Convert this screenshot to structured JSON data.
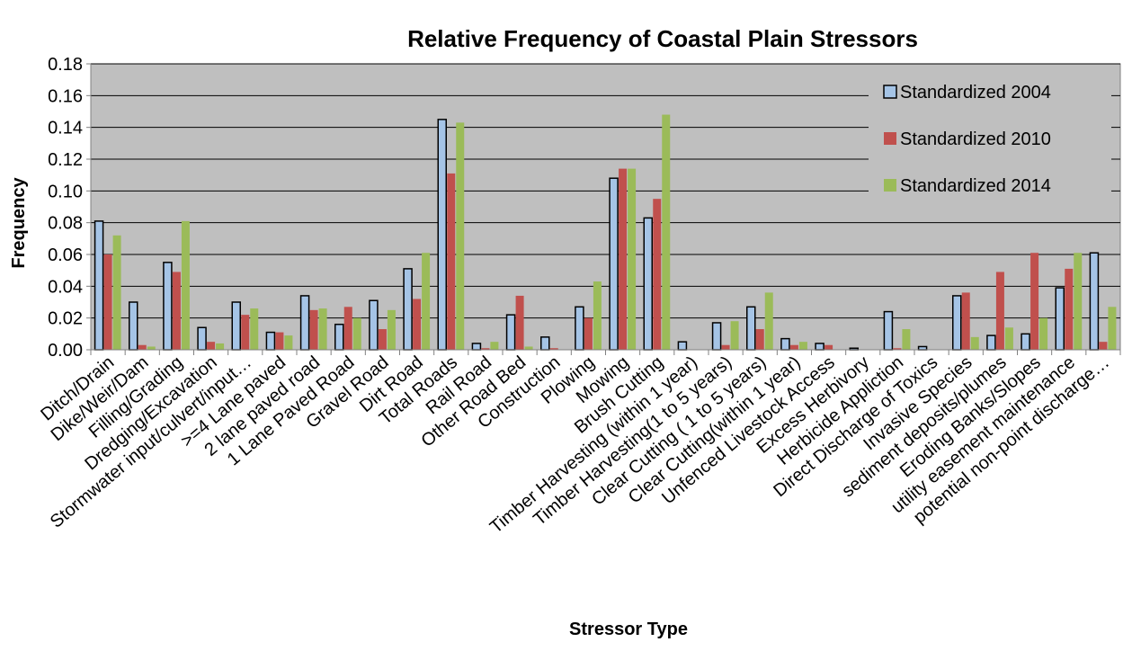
{
  "chart_data": {
    "type": "bar",
    "title": "Relative Frequency of Coastal Plain Stressors",
    "xlabel": "Stressor Type",
    "ylabel": "Frequency",
    "ylim": [
      0,
      0.18
    ],
    "yticks": [
      "0.00",
      "0.02",
      "0.04",
      "0.06",
      "0.08",
      "0.10",
      "0.12",
      "0.14",
      "0.16",
      "0.18"
    ],
    "ytick_values": [
      0,
      0.02,
      0.04,
      0.06,
      0.08,
      0.1,
      0.12,
      0.14,
      0.16,
      0.18
    ],
    "grid": true,
    "legend_position": "top-right inside",
    "categories": [
      "Ditch/Drain",
      "Dike/Weir/Dam",
      "Filling/Grading",
      "Dredging/Excavation",
      "Stormwater input/culvert/input…",
      ">=4 Lane paved",
      "2 lane paved road",
      "1 Lane Paved Road",
      "Gravel Road",
      "Dirt Road",
      "Total Roads",
      "Rail Road",
      "Other Road Bed",
      "Construction",
      "Plowing",
      "Mowing",
      "Brush Cutting",
      "Timber Harvesting (within 1 year)",
      "Timber Harvesting(1 to 5 years)",
      "Clear Cutting ( 1 to 5 years)",
      "Clear Cutting(within 1 year)",
      "Unfenced Livestock Access",
      "Excess Herbivory",
      "Herbicide Appliction",
      "Direct Discharge of Toxics",
      "Invasive Species",
      "sediment deposits/plumes",
      "Eroding Banks/Slopes",
      "utility easement maintenance",
      "potential non-point discharge…"
    ],
    "series": [
      {
        "name": "Standardized 2004",
        "color": "#a5c4e6",
        "border": "#000000",
        "values": [
          0.081,
          0.03,
          0.055,
          0.014,
          0.03,
          0.011,
          0.034,
          0.016,
          0.031,
          0.051,
          0.145,
          0.004,
          0.022,
          0.008,
          0.027,
          0.108,
          0.083,
          0.005,
          0.017,
          0.027,
          0.007,
          0.004,
          0.001,
          0.024,
          0.002,
          0.034,
          0.009,
          0.01,
          0.039,
          0.061
        ]
      },
      {
        "name": "Standardized 2010",
        "color": "#c0504d",
        "values": [
          0.06,
          0.003,
          0.049,
          0.005,
          0.022,
          0.011,
          0.025,
          0.027,
          0.013,
          0.032,
          0.111,
          0.001,
          0.034,
          0.001,
          0.02,
          0.114,
          0.095,
          0.0,
          0.003,
          0.013,
          0.003,
          0.003,
          0.0,
          0.001,
          0.0,
          0.036,
          0.049,
          0.061,
          0.051,
          0.005
        ]
      },
      {
        "name": "Standardized 2014",
        "color": "#9bbb59",
        "values": [
          0.072,
          0.002,
          0.081,
          0.004,
          0.026,
          0.009,
          0.026,
          0.02,
          0.025,
          0.061,
          0.143,
          0.005,
          0.002,
          0.0,
          0.043,
          0.114,
          0.148,
          0.0,
          0.018,
          0.036,
          0.005,
          0.0,
          0.0,
          0.013,
          0.0,
          0.008,
          0.014,
          0.02,
          0.061,
          0.027
        ]
      }
    ]
  }
}
